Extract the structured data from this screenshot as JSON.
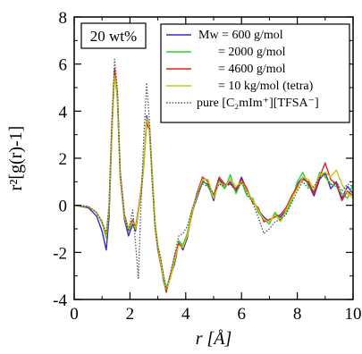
{
  "chart_data": {
    "type": "line",
    "annotation": "20 wt%",
    "xlabel": "r [Å]",
    "ylabel": "r²[g(r)-1]",
    "xlim": [
      0,
      10
    ],
    "ylim": [
      -4,
      8
    ],
    "xticks": [
      "0",
      "2",
      "4",
      "6",
      "8",
      "10"
    ],
    "yticks": [
      "-4",
      "-2",
      "0",
      "2",
      "4",
      "6",
      "8"
    ],
    "grid": false,
    "legend_position": "top-right",
    "series": [
      {
        "name": "Mw = 600 g/mol",
        "color": "#3c28c8",
        "style": "solid",
        "x": [
          0,
          0.5,
          0.8,
          1.0,
          1.15,
          1.25,
          1.35,
          1.45,
          1.55,
          1.65,
          1.8,
          1.95,
          2.1,
          2.2,
          2.3,
          2.4,
          2.5,
          2.6,
          2.7,
          2.8,
          2.9,
          3.0,
          3.1,
          3.2,
          3.3,
          3.45,
          3.6,
          3.75,
          3.9,
          4.05,
          4.2,
          4.4,
          4.6,
          4.8,
          5.0,
          5.2,
          5.4,
          5.6,
          5.8,
          6.0,
          6.2,
          6.4,
          6.6,
          6.8,
          7.0,
          7.2,
          7.4,
          7.6,
          7.8,
          8.0,
          8.2,
          8.4,
          8.6,
          8.8,
          9.0,
          9.2,
          9.4,
          9.6,
          9.8,
          10.0
        ],
        "y": [
          0,
          -0.1,
          -0.45,
          -1.1,
          -1.9,
          -0.5,
          3.0,
          5.7,
          4.5,
          1.2,
          -0.6,
          -1.3,
          -0.8,
          -1.1,
          -0.3,
          0.5,
          1.8,
          3.8,
          3.3,
          1.2,
          -0.8,
          -1.8,
          -2.4,
          -3.2,
          -3.6,
          -3.0,
          -2.5,
          -1.6,
          -1.9,
          -1.4,
          -0.4,
          0.3,
          1.0,
          0.9,
          0.2,
          1.1,
          0.8,
          1.0,
          0.6,
          1.2,
          0.6,
          0.2,
          -0.2,
          -0.5,
          -0.7,
          -0.4,
          -0.5,
          -0.2,
          0.3,
          0.9,
          1.2,
          0.9,
          0.4,
          1.1,
          1.4,
          0.7,
          1.0,
          0.3,
          0.8,
          0.5
        ]
      },
      {
        "name": "= 2000 g/mol",
        "color": "#2ad42a",
        "style": "solid",
        "x": [
          0,
          0.5,
          0.8,
          1.0,
          1.15,
          1.25,
          1.35,
          1.45,
          1.55,
          1.65,
          1.8,
          1.95,
          2.1,
          2.2,
          2.3,
          2.4,
          2.5,
          2.6,
          2.7,
          2.8,
          2.9,
          3.0,
          3.1,
          3.2,
          3.3,
          3.45,
          3.6,
          3.75,
          3.9,
          4.05,
          4.2,
          4.4,
          4.6,
          4.8,
          5.0,
          5.2,
          5.4,
          5.6,
          5.8,
          6.0,
          6.2,
          6.4,
          6.6,
          6.8,
          7.0,
          7.2,
          7.4,
          7.6,
          7.8,
          8.0,
          8.2,
          8.4,
          8.6,
          8.8,
          9.0,
          9.2,
          9.4,
          9.6,
          9.8,
          10.0
        ],
        "y": [
          0,
          -0.05,
          -0.3,
          -0.75,
          -1.4,
          -0.2,
          3.2,
          5.6,
          4.6,
          1.3,
          -0.5,
          -1.1,
          -0.7,
          -0.9,
          -0.2,
          0.6,
          1.7,
          3.6,
          3.4,
          1.3,
          -0.7,
          -1.7,
          -2.3,
          -3.0,
          -3.5,
          -3.1,
          -2.4,
          -1.5,
          -1.7,
          -1.2,
          -0.3,
          0.4,
          1.1,
          0.8,
          0.3,
          1.0,
          0.7,
          1.3,
          0.5,
          1.0,
          0.4,
          0.3,
          -0.3,
          -0.6,
          -0.8,
          -0.3,
          -0.6,
          -0.3,
          0.2,
          1.0,
          1.4,
          0.8,
          0.6,
          1.4,
          1.2,
          0.9,
          0.8,
          0.5,
          0.3,
          0.9
        ]
      },
      {
        "name": "= 4600 g/mol",
        "color": "#e61e1e",
        "style": "solid",
        "x": [
          0,
          0.5,
          0.8,
          1.0,
          1.15,
          1.25,
          1.35,
          1.45,
          1.55,
          1.65,
          1.8,
          1.95,
          2.1,
          2.2,
          2.3,
          2.4,
          2.5,
          2.6,
          2.7,
          2.8,
          2.9,
          3.0,
          3.1,
          3.2,
          3.3,
          3.45,
          3.6,
          3.75,
          3.9,
          4.05,
          4.2,
          4.4,
          4.6,
          4.8,
          5.0,
          5.2,
          5.4,
          5.6,
          5.8,
          6.0,
          6.2,
          6.4,
          6.6,
          6.8,
          7.0,
          7.2,
          7.4,
          7.6,
          7.8,
          8.0,
          8.2,
          8.4,
          8.6,
          8.8,
          9.0,
          9.2,
          9.4,
          9.6,
          9.8,
          10.0
        ],
        "y": [
          0,
          -0.05,
          -0.3,
          -0.7,
          -1.3,
          -0.1,
          3.3,
          5.8,
          4.7,
          1.4,
          -0.4,
          -1.0,
          -0.6,
          -1.0,
          -0.2,
          0.7,
          1.9,
          3.5,
          3.2,
          1.1,
          -0.9,
          -1.9,
          -2.5,
          -3.1,
          -3.7,
          -3.0,
          -2.2,
          -1.6,
          -1.8,
          -1.3,
          -0.5,
          0.5,
          1.2,
          1.0,
          0.4,
          1.2,
          0.9,
          0.9,
          0.7,
          1.1,
          0.7,
          0.1,
          -0.1,
          -0.7,
          -0.6,
          -0.5,
          -0.4,
          -0.1,
          0.4,
          0.8,
          1.1,
          1.0,
          0.5,
          1.2,
          1.8,
          1.1,
          0.9,
          0.2,
          0.6,
          0.4
        ]
      },
      {
        "name": "= 10 kg/mol (tetra)",
        "color": "#c8c814",
        "style": "solid",
        "x": [
          0,
          0.5,
          0.8,
          1.0,
          1.15,
          1.25,
          1.35,
          1.45,
          1.55,
          1.65,
          1.8,
          1.95,
          2.1,
          2.2,
          2.3,
          2.4,
          2.5,
          2.6,
          2.7,
          2.8,
          2.9,
          3.0,
          3.1,
          3.2,
          3.3,
          3.45,
          3.6,
          3.75,
          3.9,
          4.05,
          4.2,
          4.4,
          4.6,
          4.8,
          5.0,
          5.2,
          5.4,
          5.6,
          5.8,
          6.0,
          6.2,
          6.4,
          6.6,
          6.8,
          7.0,
          7.2,
          7.4,
          7.6,
          7.8,
          8.0,
          8.2,
          8.4,
          8.6,
          8.8,
          9.0,
          9.2,
          9.4,
          9.6,
          9.8,
          10.0
        ],
        "y": [
          0,
          -0.05,
          -0.3,
          -0.7,
          -1.3,
          -0.1,
          3.1,
          5.5,
          4.6,
          1.3,
          -0.5,
          -1.0,
          -0.7,
          -1.0,
          -0.3,
          0.6,
          1.8,
          3.7,
          3.3,
          1.2,
          -0.8,
          -1.8,
          -2.4,
          -3.1,
          -3.6,
          -3.1,
          -2.3,
          -1.7,
          -1.8,
          -1.3,
          -0.4,
          0.4,
          1.1,
          1.1,
          0.3,
          1.0,
          0.8,
          1.1,
          0.8,
          1.0,
          0.6,
          0.2,
          -0.2,
          -0.6,
          -0.7,
          -0.4,
          -0.7,
          -0.2,
          0.3,
          0.7,
          1.2,
          1.1,
          0.7,
          1.3,
          1.4,
          1.2,
          1.5,
          0.9,
          0.5,
          0.3
        ]
      },
      {
        "name": "pure [C₂mIm⁺][TFSA⁻]",
        "color": "#555555",
        "style": "dotted",
        "x": [
          0,
          0.5,
          0.8,
          1.0,
          1.15,
          1.25,
          1.35,
          1.45,
          1.55,
          1.65,
          1.8,
          1.95,
          2.1,
          2.2,
          2.3,
          2.4,
          2.5,
          2.6,
          2.7,
          2.8,
          2.9,
          3.0,
          3.1,
          3.2,
          3.3,
          3.45,
          3.6,
          3.75,
          3.9,
          4.05,
          4.2,
          4.4,
          4.6,
          4.8,
          5.0,
          5.2,
          5.4,
          5.6,
          5.8,
          6.0,
          6.2,
          6.4,
          6.6,
          6.8,
          7.0,
          7.2,
          7.4,
          7.6,
          7.8,
          8.0,
          8.2,
          8.4,
          8.6,
          8.8,
          9.0,
          9.2,
          9.4,
          9.6,
          9.8,
          10.0
        ],
        "y": [
          0,
          -0.05,
          -0.3,
          -0.7,
          -1.2,
          0.0,
          3.5,
          6.2,
          4.9,
          1.4,
          -0.4,
          -1.1,
          -0.2,
          -1.6,
          -3.1,
          0.2,
          3.0,
          5.2,
          3.6,
          0.9,
          -1.0,
          -1.8,
          -2.2,
          -2.9,
          -3.6,
          -2.9,
          -2.1,
          -1.3,
          -1.2,
          -0.9,
          -0.3,
          0.5,
          0.9,
          0.8,
          0.5,
          0.9,
          0.8,
          0.9,
          0.6,
          1.0,
          0.5,
          0.1,
          -0.5,
          -1.2,
          -1.0,
          -0.7,
          -0.6,
          -0.4,
          0.1,
          0.6,
          1.0,
          0.7,
          0.8,
          1.2,
          1.3,
          0.9,
          1.0,
          0.6,
          0.9,
          0.8
        ]
      }
    ]
  }
}
